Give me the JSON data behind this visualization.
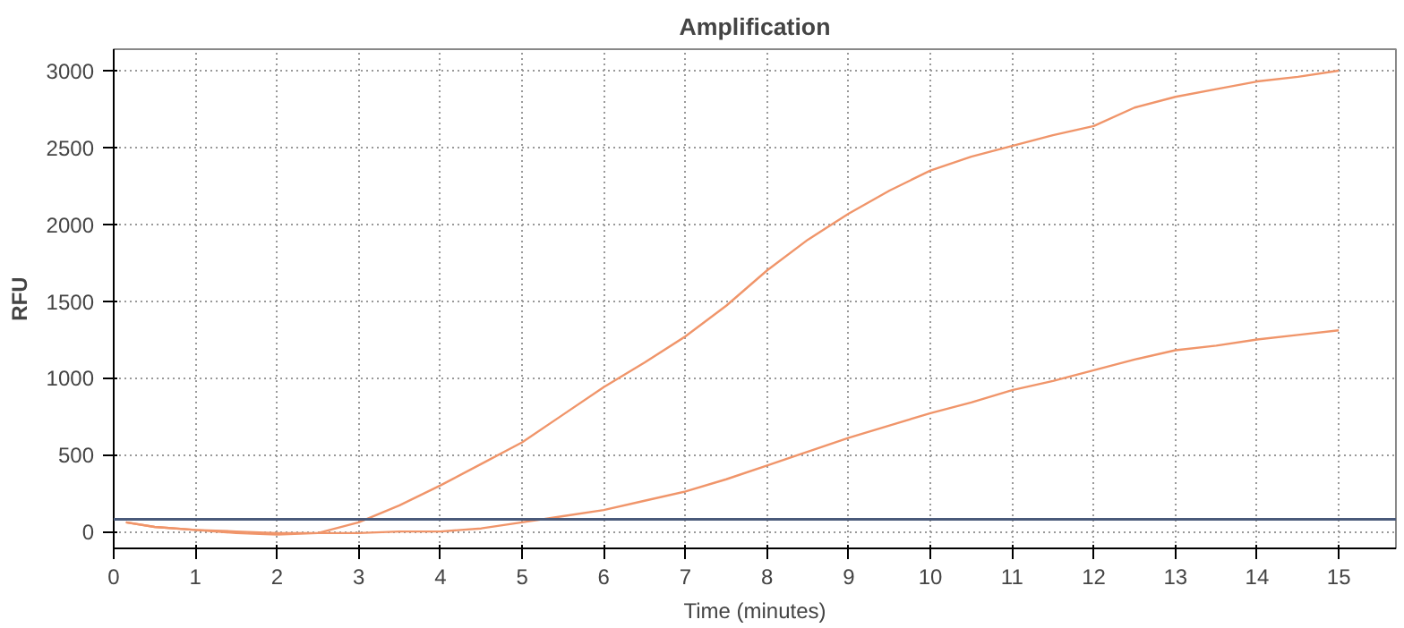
{
  "chart_data": {
    "type": "line",
    "title": "Amplification",
    "xlabel": "Time (minutes)",
    "ylabel": "RFU",
    "xlim": [
      0,
      15.7
    ],
    "ylim": [
      -110,
      3140
    ],
    "xticks": [
      0,
      1,
      2,
      3,
      4,
      5,
      6,
      7,
      8,
      9,
      10,
      11,
      12,
      13,
      14,
      15
    ],
    "yticks": [
      0,
      500,
      1000,
      1500,
      2000,
      2500,
      3000
    ],
    "grid": true,
    "marker": "none",
    "line_style": "solid",
    "series": [
      {
        "color": "#f0956a",
        "x": [
          0.15,
          0.5,
          1,
          1.5,
          2,
          2.5,
          3,
          3.5,
          4,
          4.5,
          5,
          5.5,
          6,
          6.5,
          7,
          7.5,
          8,
          8.5,
          9,
          9.5,
          10,
          10.5,
          11,
          11.5,
          12,
          12.5,
          13,
          13.5,
          14,
          14.5,
          15
        ],
        "values": [
          60,
          30,
          10,
          -10,
          -20,
          -10,
          60,
          170,
          300,
          440,
          580,
          760,
          940,
          1100,
          1270,
          1470,
          1700,
          1900,
          2070,
          2220,
          2350,
          2440,
          2510,
          2580,
          2640,
          2760,
          2830,
          2880,
          2930,
          2960,
          3000
        ]
      },
      {
        "color": "#f0956a",
        "x": [
          0.15,
          0.5,
          1,
          1.5,
          2,
          2.5,
          3,
          3.5,
          4,
          4.5,
          5,
          5.5,
          6,
          6.5,
          7,
          7.5,
          8,
          8.5,
          9,
          9.5,
          10,
          10.5,
          11,
          11.5,
          12,
          12.5,
          13,
          13.5,
          14,
          14.5,
          15
        ],
        "values": [
          60,
          30,
          10,
          0,
          -10,
          -10,
          -10,
          0,
          0,
          20,
          60,
          100,
          140,
          200,
          260,
          340,
          430,
          520,
          610,
          690,
          770,
          840,
          920,
          980,
          1050,
          1120,
          1180,
          1210,
          1250,
          1280,
          1310
        ]
      }
    ],
    "ref_lines": [
      {
        "axis": "y",
        "value": 80,
        "color": "#4a5a7a"
      }
    ]
  }
}
